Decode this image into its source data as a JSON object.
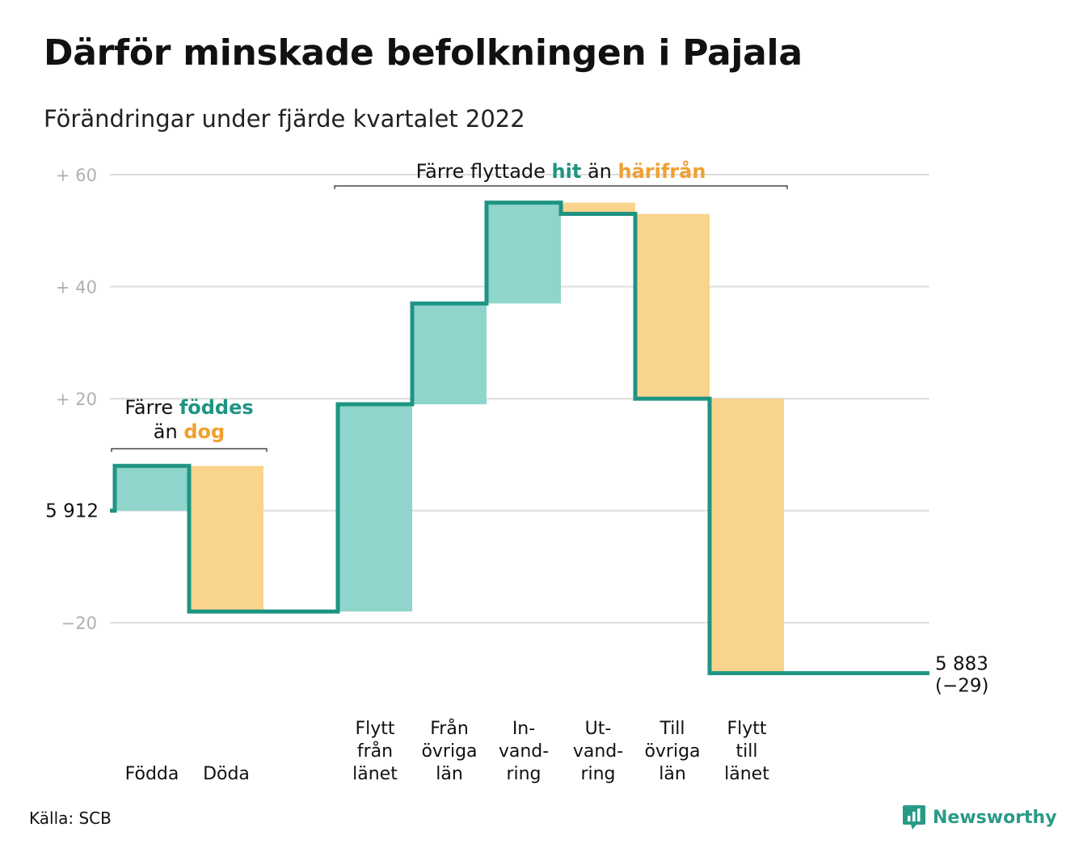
{
  "title": "Därför minskade befolkningen i Pajala",
  "subtitle": "Förändringar under fjärde kvartalet 2022",
  "source": "Källa: SCB",
  "brand": "Newsworthy",
  "colors": {
    "increase": "#8fd5cb",
    "decrease": "#f9d48c",
    "line": "#1f9483",
    "accent_teal": "#1f9483",
    "accent_orange": "#f0a030",
    "grid": "#dcdcdc",
    "tick": "#b0b0b0"
  },
  "chart_data": {
    "type": "waterfall",
    "start_label": "5 912",
    "end_labels": [
      "5 883",
      "(−29)"
    ],
    "start_value": 0,
    "end_value": -29,
    "ylim": [
      -30,
      60
    ],
    "y_ticks": [
      {
        "value": 60,
        "label": "+ 60"
      },
      {
        "value": 40,
        "label": "+ 40"
      },
      {
        "value": 20,
        "label": "+ 20"
      },
      {
        "value": 0,
        "label": ""
      },
      {
        "value": -20,
        "label": "−20"
      }
    ],
    "steps": [
      {
        "label": [
          "Födda"
        ],
        "change": 8,
        "type": "increase"
      },
      {
        "label": [
          "Döda"
        ],
        "change": -26,
        "type": "decrease"
      },
      {
        "label": [],
        "change": 0,
        "type": "gap"
      },
      {
        "label": [
          "Flytt",
          "från",
          "länet"
        ],
        "change": 37,
        "type": "increase"
      },
      {
        "label": [
          "Från",
          "övriga",
          "län"
        ],
        "change": 18,
        "type": "increase"
      },
      {
        "label": [
          "In-",
          "vand-",
          "ring"
        ],
        "change": 18,
        "type": "increase"
      },
      {
        "label": [
          "Ut-",
          "vand-",
          "ring"
        ],
        "change": -2,
        "type": "decrease"
      },
      {
        "label": [
          "Till",
          "övriga",
          "län"
        ],
        "change": -33,
        "type": "decrease"
      },
      {
        "label": [
          "Flytt",
          "till",
          "länet"
        ],
        "change": -49,
        "type": "decrease"
      },
      {
        "label": [],
        "change": 0,
        "type": "gap"
      }
    ],
    "annotations": [
      {
        "text_parts": [
          "Färre flyttade ",
          "hit",
          " än ",
          "härifrån"
        ],
        "from_step": 3,
        "to_step": 8
      },
      {
        "lines": [
          [
            "Färre ",
            "föddes"
          ],
          [
            "än ",
            "dog"
          ]
        ],
        "from_step": 0,
        "to_step": 1
      }
    ]
  }
}
